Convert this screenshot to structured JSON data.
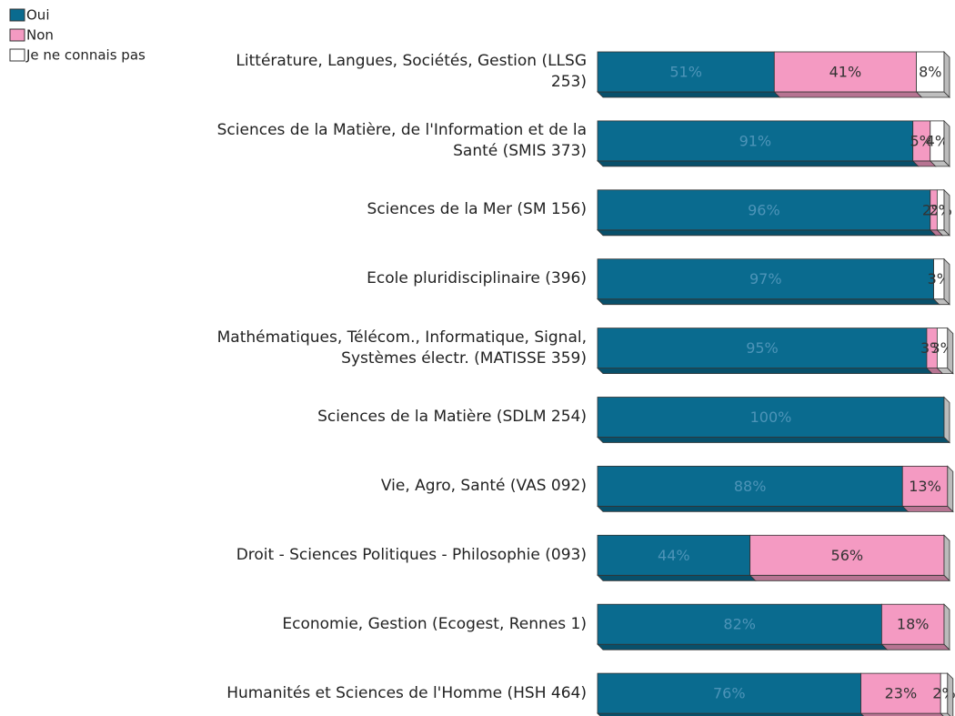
{
  "chart_data": {
    "type": "stacked-bar-horizontal",
    "categories": [
      "Littérature, Langues, Sociétés, Gestion (LLSG 253)",
      "Sciences de la Matière, de l'Information et de la Santé (SMIS 373)",
      "Sciences de la Mer (SM 156)",
      "Ecole pluridisciplinaire (396)",
      "Mathématiques, Télécom., Informatique, Signal, Systèmes électr. (MATISSE 359)",
      "Sciences de la Matière (SDLM 254)",
      "Vie, Agro, Santé (VAS 092)",
      "Droit - Sciences Politiques - Philosophie (093)",
      "Economie, Gestion (Ecogest, Rennes 1)",
      "Humanités et Sciences de l'Homme (HSH 464)"
    ],
    "series": [
      {
        "name": "Oui",
        "color": "#0a6b8f",
        "text_color": "#4d94b8",
        "values": [
          51,
          91,
          96,
          97,
          95,
          100,
          88,
          44,
          82,
          76
        ],
        "value_labels": [
          "51%",
          "91%",
          "96%",
          "97%",
          "95%",
          "100%",
          "88%",
          "44%",
          "82%",
          "76%"
        ]
      },
      {
        "name": "Non",
        "color": "#f49ac2",
        "text_color": "#333333",
        "values": [
          41,
          5,
          2,
          0,
          3,
          0,
          13,
          56,
          18,
          23
        ],
        "value_labels": [
          "41%",
          "5%",
          "2%",
          null,
          "3%",
          null,
          "13%",
          "56%",
          "18%",
          "23%"
        ]
      },
      {
        "name": "Je ne connais pas",
        "color": "#ffffff",
        "text_color": "#333333",
        "values": [
          8,
          4,
          2,
          3,
          3,
          0,
          0,
          0,
          0,
          2
        ],
        "value_labels": [
          "8%",
          "4%",
          "2%",
          "3%",
          "3%",
          null,
          null,
          null,
          null,
          "2%"
        ]
      }
    ],
    "xlim": [
      0,
      100
    ],
    "legend": "top-left"
  }
}
